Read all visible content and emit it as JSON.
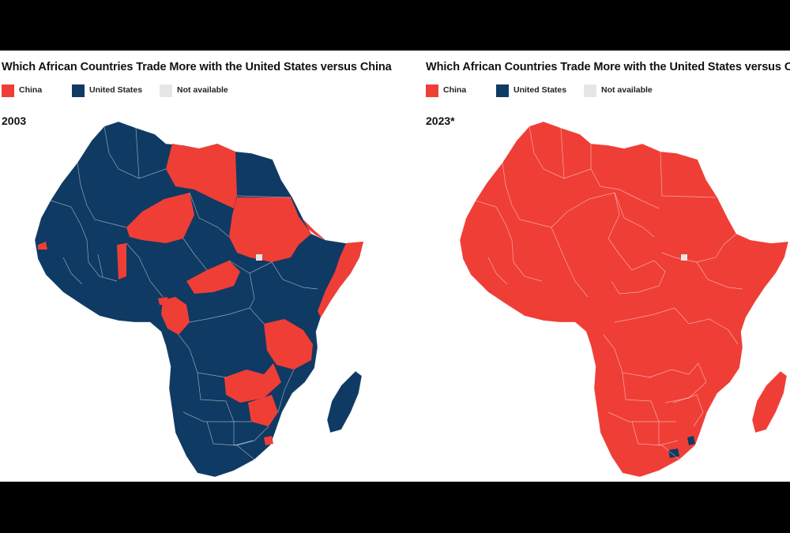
{
  "maps": [
    {
      "title": "Which African Countries Trade More with the United States versus China",
      "year": "2003"
    },
    {
      "title": "Which African Countries Trade More with the United States versus China",
      "year": "2023*"
    }
  ],
  "legend": [
    {
      "label": "China",
      "color": "#ef3e36"
    },
    {
      "label": "United States",
      "color": "#0f3a63"
    },
    {
      "label": "Not available",
      "color": "#e6e6e6"
    }
  ],
  "colors": {
    "china": "#ef3e36",
    "united_states": "#0f3a63",
    "not_available": "#e6e6e6",
    "border": "#ffffff"
  },
  "map_2003_leading_partner": {
    "United States": [
      "Morocco",
      "Algeria",
      "Tunisia",
      "Egypt",
      "Mauritania",
      "Mali",
      "Chad",
      "Nigeria",
      "Niger region west",
      "Ethiopia",
      "Kenya",
      "Uganda",
      "Democratic Republic of the Congo",
      "Angola",
      "Namibia",
      "Botswana",
      "South Africa",
      "Mozambique",
      "Madagascar",
      "Senegal",
      "Guinea",
      "Côte d'Ivoire",
      "Ghana"
    ],
    "China": [
      "Libya",
      "Sudan",
      "Niger",
      "Central African Republic",
      "Somalia",
      "Eritrea",
      "Tanzania",
      "Zambia",
      "Zimbabwe",
      "Congo",
      "Gabon",
      "Benin",
      "Gambia",
      "Swaziland"
    ]
  },
  "map_2023_leading_partner": {
    "China": [
      "nearly all African countries"
    ],
    "United States": [
      "Lesotho",
      "Eswatini"
    ]
  }
}
